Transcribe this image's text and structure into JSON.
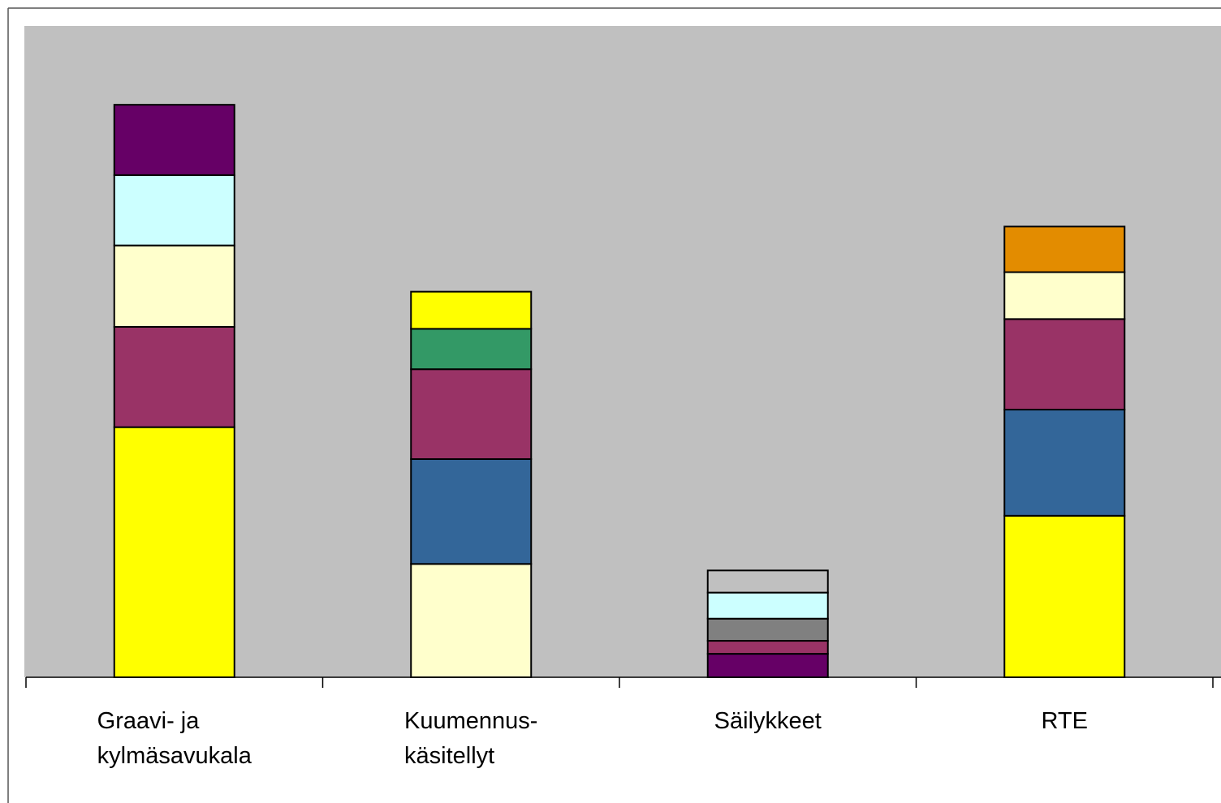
{
  "chart_data": {
    "type": "stacked_bar",
    "categories": [
      "Graavi- ja\nkylmäsavukala",
      "Kuumennus-\nkäsitellyt",
      "Säilykkeet",
      "RTE"
    ],
    "stacks": [
      [
        {
          "value": 38.4,
          "color": "#ffff00"
        },
        {
          "value": 15.4,
          "color": "#993366"
        },
        {
          "value": 12.5,
          "color": "#ffffcc"
        },
        {
          "value": 10.8,
          "color": "#ccffff"
        },
        {
          "value": 10.8,
          "color": "#660066"
        }
      ],
      [
        {
          "value": 17.4,
          "color": "#ffffcc"
        },
        {
          "value": 16.1,
          "color": "#336699"
        },
        {
          "value": 13.8,
          "color": "#993366"
        },
        {
          "value": 6.2,
          "color": "#339966"
        },
        {
          "value": 5.7,
          "color": "#ffff00"
        }
      ],
      [
        {
          "value": 3.6,
          "color": "#660066"
        },
        {
          "value": 2.0,
          "color": "#993366"
        },
        {
          "value": 3.4,
          "color": "#808080"
        },
        {
          "value": 4.0,
          "color": "#ccffff"
        },
        {
          "value": 3.4,
          "color": "#c0c0c0"
        }
      ],
      [
        {
          "value": 24.8,
          "color": "#ffff00"
        },
        {
          "value": 16.3,
          "color": "#336699"
        },
        {
          "value": 13.9,
          "color": "#993366"
        },
        {
          "value": 7.2,
          "color": "#ffffcc"
        },
        {
          "value": 7.0,
          "color": "#e38c00"
        }
      ]
    ],
    "ylim": [
      0,
      100
    ],
    "background": "#c0c0c0"
  }
}
